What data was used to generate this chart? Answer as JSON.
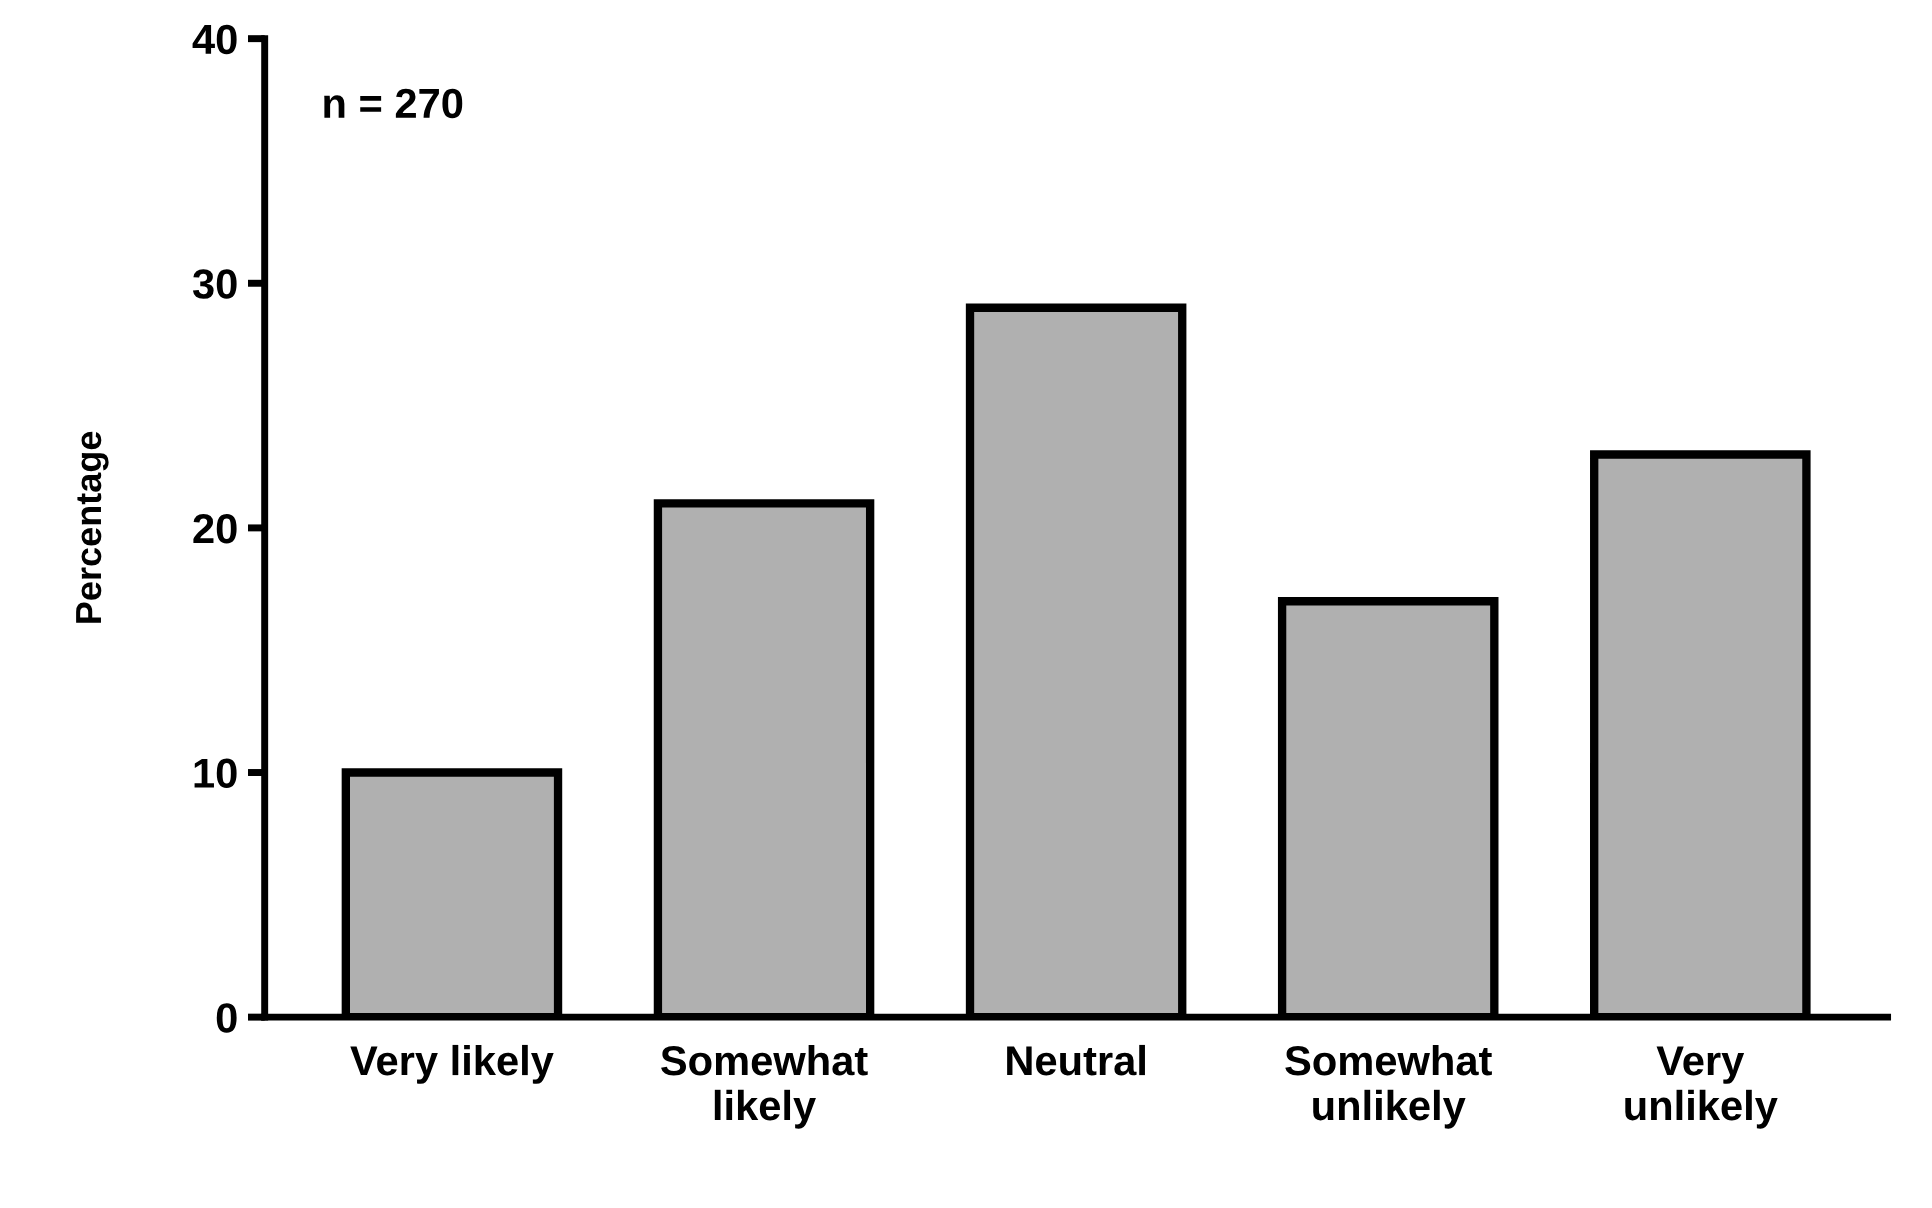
{
  "chart_data": {
    "type": "bar",
    "ylabel": "Percentage",
    "categories": [
      "Very likely",
      "Somewhat\nlikely",
      "Neutral",
      "Somewhat\nunlikely",
      "Very\nunlikely"
    ],
    "values": [
      10,
      21,
      29,
      17,
      23
    ],
    "color": "#b0b0b0",
    "ylim": [
      0,
      40
    ],
    "yticks": [
      0,
      10,
      20,
      30,
      40
    ],
    "grid": false,
    "legend": false,
    "annotations": [
      "n = 270"
    ]
  }
}
